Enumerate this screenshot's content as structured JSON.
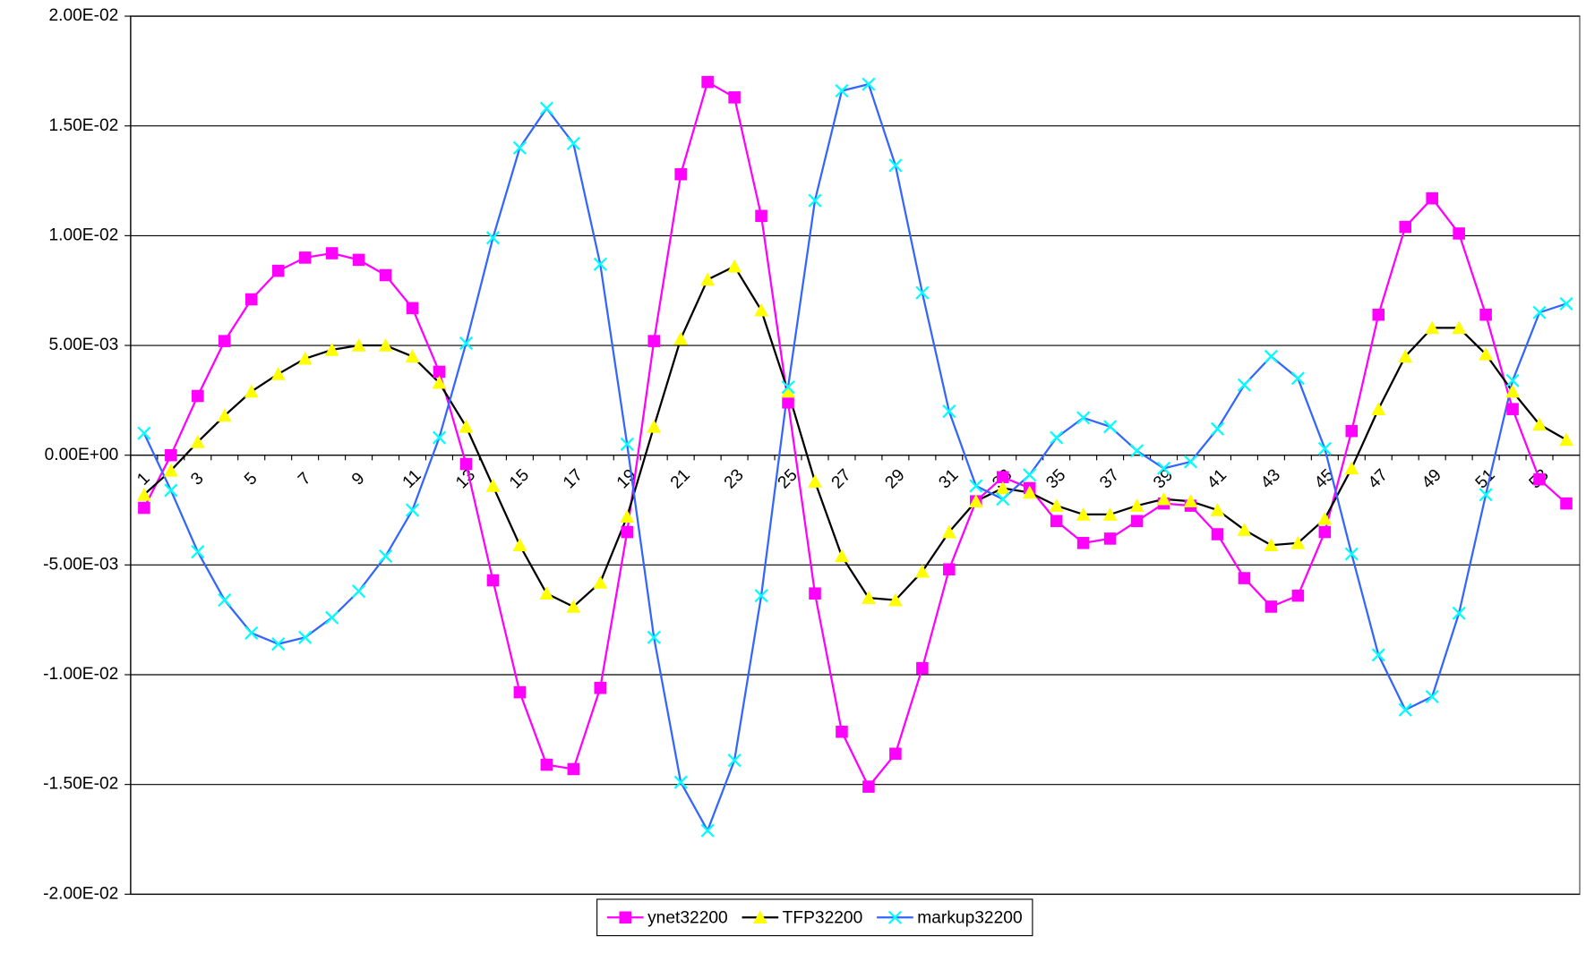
{
  "chart_data": {
    "type": "line",
    "categories": [
      "1",
      null,
      "3",
      null,
      "5",
      null,
      "7",
      null,
      "9",
      null,
      "11",
      null,
      "13",
      null,
      "15",
      null,
      "17",
      null,
      "19",
      null,
      "21",
      null,
      "23",
      null,
      "25",
      null,
      "27",
      null,
      "29",
      null,
      "31",
      null,
      "33",
      null,
      "35",
      null,
      "37",
      null,
      "39",
      null,
      "41",
      null,
      "43",
      null,
      "45",
      null,
      "47",
      null,
      "49",
      null,
      "51",
      null,
      "53",
      null
    ],
    "series": [
      {
        "name": "ynet32200",
        "color": "#ff00ff",
        "marker": "square",
        "marker_color": "#ff00ff",
        "values": [
          -0.0024,
          0.0,
          0.0027,
          0.0052,
          0.0071,
          0.0084,
          0.009,
          0.0092,
          0.0089,
          0.0082,
          0.0067,
          0.0038,
          -0.0004,
          -0.0057,
          -0.0108,
          -0.0141,
          -0.0143,
          -0.0106,
          -0.0035,
          0.0052,
          0.0128,
          0.017,
          0.0163,
          0.0109,
          0.0024,
          -0.0063,
          -0.0126,
          -0.0151,
          -0.0136,
          -0.0097,
          -0.0052,
          -0.0021,
          -0.001,
          -0.0015,
          -0.003,
          -0.004,
          -0.0038,
          -0.003,
          -0.0022,
          -0.0023,
          -0.0036,
          -0.0056,
          -0.0069,
          -0.0064,
          -0.0035,
          0.0011,
          0.0064,
          0.0104,
          0.0117,
          0.0101,
          0.0064,
          0.0021,
          -0.0011,
          -0.0022
        ]
      },
      {
        "name": "TFP32200",
        "color": "#000000",
        "marker": "triangle",
        "marker_color": "#ffff00",
        "values": [
          -0.0018,
          -0.0007,
          0.0006,
          0.0018,
          0.0029,
          0.0037,
          0.0044,
          0.0048,
          0.005,
          0.005,
          0.0045,
          0.0033,
          0.0013,
          -0.0014,
          -0.0041,
          -0.0063,
          -0.0069,
          -0.0058,
          -0.0028,
          0.0013,
          0.0053,
          0.008,
          0.0086,
          0.0066,
          0.0029,
          -0.0012,
          -0.0046,
          -0.0065,
          -0.0066,
          -0.0053,
          -0.0035,
          -0.0021,
          -0.0015,
          -0.0017,
          -0.0023,
          -0.0027,
          -0.0027,
          -0.0023,
          -0.002,
          -0.0021,
          -0.0025,
          -0.0034,
          -0.0041,
          -0.004,
          -0.0029,
          -0.0006,
          0.0021,
          0.0045,
          0.0058,
          0.0058,
          0.0046,
          0.0029,
          0.0014,
          0.0007
        ]
      },
      {
        "name": "markup32200",
        "color": "#3366ff",
        "marker": "x",
        "marker_color": "#00ffff",
        "values": [
          0.001,
          -0.0016,
          -0.0044,
          -0.0066,
          -0.0081,
          -0.0086,
          -0.0083,
          -0.0074,
          -0.0062,
          -0.0046,
          -0.0025,
          0.0008,
          0.0051,
          0.0099,
          0.014,
          0.0158,
          0.0142,
          0.0087,
          0.0005,
          -0.0083,
          -0.0149,
          -0.0171,
          -0.0139,
          -0.0064,
          0.0031,
          0.0116,
          0.0166,
          0.0169,
          0.0132,
          0.0074,
          0.002,
          -0.0014,
          -0.002,
          -0.0009,
          0.0008,
          0.0017,
          0.0013,
          0.0002,
          -0.0006,
          -0.0003,
          0.0012,
          0.0032,
          0.0045,
          0.0035,
          0.0003,
          -0.0045,
          -0.0091,
          -0.0116,
          -0.011,
          -0.0072,
          -0.0018,
          0.0034,
          0.0065,
          0.0069
        ]
      }
    ],
    "ylim": [
      -0.02,
      0.02
    ],
    "yticks": [
      {
        "value": -0.02,
        "label": "-2.00E-02"
      },
      {
        "value": -0.015,
        "label": "-1.50E-02"
      },
      {
        "value": -0.01,
        "label": "-1.00E-02"
      },
      {
        "value": -0.005,
        "label": "-5.00E-03"
      },
      {
        "value": 0,
        "label": "0.00E+00"
      },
      {
        "value": 0.005,
        "label": "5.00E-03"
      },
      {
        "value": 0.01,
        "label": "1.00E-02"
      },
      {
        "value": 0.015,
        "label": "1.50E-02"
      },
      {
        "value": 0.02,
        "label": "2.00E-02"
      }
    ],
    "grid": true,
    "legend": "bottom"
  }
}
